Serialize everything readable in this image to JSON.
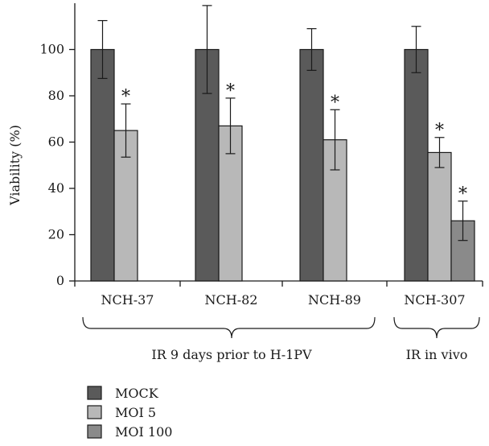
{
  "chart_data": {
    "type": "bar",
    "ylabel": "Viability (%)",
    "ylim": [
      0,
      120
    ],
    "yticks": [
      0,
      20,
      40,
      60,
      80,
      100
    ],
    "grid": false,
    "legend_position": "bottom-left",
    "categories": [
      "NCH-37",
      "NCH-82",
      "NCH-89",
      "NCH-307"
    ],
    "series": [
      {
        "name": "MOCK",
        "color": "#5a5a5a",
        "values": [
          100,
          100,
          100,
          100
        ],
        "errors": [
          12.5,
          19,
          9,
          10
        ],
        "significant": [
          false,
          false,
          false,
          false
        ]
      },
      {
        "name": "MOI 5",
        "color": "#b8b8b8",
        "values": [
          65,
          67,
          61,
          55.5
        ],
        "errors": [
          11.5,
          12,
          13,
          6.5
        ],
        "significant": [
          true,
          true,
          true,
          true
        ]
      },
      {
        "name": "MOI 100",
        "color": "#8a8a8a",
        "values": [
          null,
          null,
          null,
          26
        ],
        "errors": [
          null,
          null,
          null,
          8.5
        ],
        "significant": [
          false,
          false,
          false,
          true
        ]
      }
    ],
    "significance_marker": "*",
    "groups": [
      {
        "label": "IR 9 days prior to H-1PV",
        "categories": [
          "NCH-37",
          "NCH-82",
          "NCH-89"
        ]
      },
      {
        "label": "IR in vivo",
        "categories": [
          "NCH-307"
        ]
      }
    ]
  }
}
